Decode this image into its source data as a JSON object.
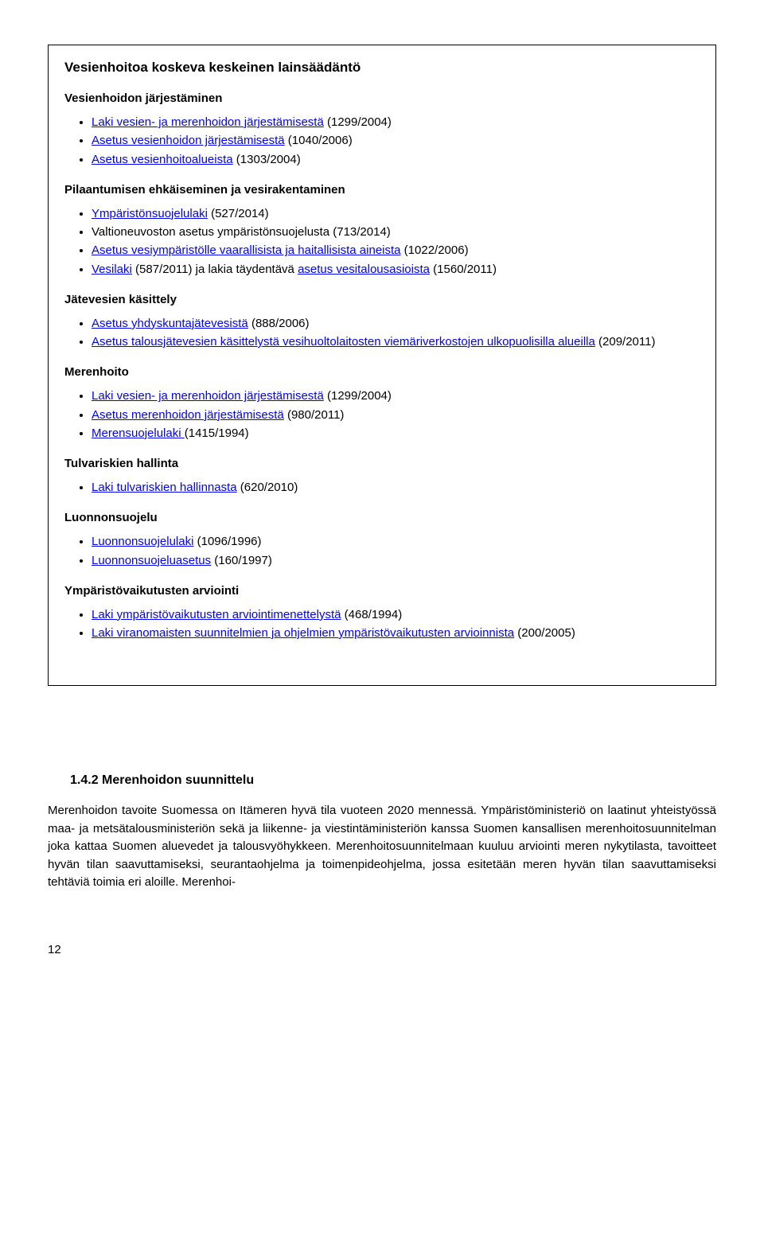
{
  "boxTitle": "Vesienhoitoa koskeva keskeinen lainsäädäntö",
  "sections": [
    {
      "heading": "Vesienhoidon järjestäminen",
      "items": [
        {
          "link": "Laki vesien- ja merenhoidon järjestämisestä",
          "suffix": " (1299/2004)"
        },
        {
          "link": "Asetus vesienhoidon järjestämisestä",
          "suffix": " (1040/2006)"
        },
        {
          "link": "Asetus vesienhoitoalueista",
          "suffix": " (1303/2004)"
        }
      ]
    },
    {
      "heading": "Pilaantumisen ehkäiseminen ja vesirakentaminen",
      "items": [
        {
          "link": "Ympäristönsuojelulaki",
          "suffix": " (527/2014)"
        },
        {
          "prefix": "Valtioneuvoston asetus ympäristönsuojelusta (713/2014)"
        },
        {
          "link": "Asetus vesiympäristölle vaarallisista ja haitallisista aineista",
          "suffix": " (1022/2006)"
        },
        {
          "link": "Vesilaki",
          "mid": " (587/2011) ja lakia täydentävä ",
          "link2": "asetus vesitalousasioista",
          "suffix": " (1560/2011)"
        }
      ]
    },
    {
      "heading": "Jätevesien käsittely",
      "items": [
        {
          "link": "Asetus yhdyskuntajätevesistä",
          "suffix": " (888/2006)"
        },
        {
          "link": "Asetus talousjätevesien käsittelystä vesihuoltolaitosten viemäriverkostojen ulkopuolisilla alueilla",
          "suffix": " (209/2011)"
        }
      ]
    },
    {
      "heading": "Merenhoito",
      "items": [
        {
          "link": "Laki vesien- ja merenhoidon järjestämisestä",
          "suffix": " (1299/2004)"
        },
        {
          "link": "Asetus merenhoidon järjestämisestä",
          "suffix": " (980/2011)"
        },
        {
          "link": "Merensuojelulaki ",
          "suffix": "(1415/1994)"
        }
      ]
    },
    {
      "heading": "Tulvariskien hallinta",
      "items": [
        {
          "link": "Laki tulvariskien hallinnasta",
          "suffix": " (620/2010)"
        }
      ]
    },
    {
      "heading": "Luonnonsuojelu",
      "items": [
        {
          "link": "Luonnonsuojelulaki",
          "suffix": " (1096/1996)"
        },
        {
          "link": "Luonnonsuojeluasetus",
          "suffix": " (160/1997)"
        }
      ]
    },
    {
      "heading": "Ympäristövaikutusten arviointi",
      "items": [
        {
          "link": "Laki ympäristövaikutusten arviointimenettelystä",
          "suffix": " (468/1994)"
        },
        {
          "link": "Laki viranomaisten suunnitelmien ja ohjelmien ympäristövaikutusten arvioinnista",
          "suffix": " (200/2005)"
        }
      ]
    }
  ],
  "subheading": "1.4.2 Merenhoidon suunnittelu",
  "paragraph": "Merenhoidon tavoite Suomessa on Itämeren hyvä tila vuoteen 2020 mennessä. Ympäristöministeriö on laatinut yhteistyössä maa- ja metsätalousministeriön sekä ja liikenne- ja viestintäministeriön kanssa Suomen kansallisen merenhoitosuunnitelman joka kattaa Suomen aluevedet ja talousvyöhykkeen. Merenhoitosuunnitelmaan kuuluu arviointi meren nykytilasta, tavoitteet hyvän tilan saavuttamiseksi, seurantaohjelma ja toimenpideohjelma, jossa esitetään meren hyvän tilan saavuttamiseksi tehtäviä toimia eri aloille. Merenhoi-",
  "pageNumber": "12"
}
